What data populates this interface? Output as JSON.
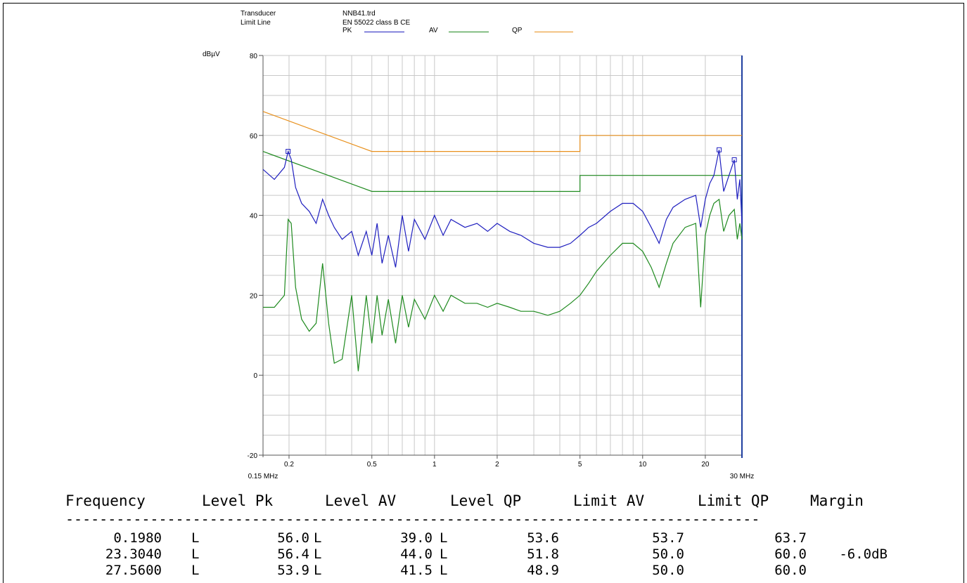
{
  "header": {
    "transducer_label": "Transducer",
    "transducer_value": "NNB41.trd",
    "limit_line_label": "Limit Line",
    "limit_line_value": "EN 55022 class B CE",
    "legend": [
      {
        "name": "PK",
        "color": "#1f1fbf"
      },
      {
        "name": "AV",
        "color": "#1f8a1f"
      },
      {
        "name": "QP",
        "color": "#e8901c"
      }
    ]
  },
  "chart_data": {
    "type": "line",
    "ylabel": "dBµV",
    "xscale": "log",
    "xlim": [
      0.15,
      30
    ],
    "ylim": [
      -20,
      80
    ],
    "y_ticks": [
      -20,
      0,
      20,
      40,
      60,
      80
    ],
    "x_ticks": [
      {
        "v": 0.2,
        "label": "0.2"
      },
      {
        "v": 0.5,
        "label": "0.5"
      },
      {
        "v": 1,
        "label": "1"
      },
      {
        "v": 2,
        "label": "2"
      },
      {
        "v": 5,
        "label": "5"
      },
      {
        "v": 10,
        "label": "10"
      },
      {
        "v": 20,
        "label": "20"
      }
    ],
    "x_min_label": "0.15 MHz",
    "x_max_label": "30 MHz",
    "grid": true,
    "series": [
      {
        "name": "QP",
        "color": "#e8901c",
        "x": [
          0.15,
          0.5,
          5,
          5,
          30
        ],
        "y": [
          66,
          56,
          56,
          60,
          60
        ]
      },
      {
        "name": "AV",
        "color": "#1f8a1f",
        "x": [
          0.15,
          0.5,
          5,
          5,
          30
        ],
        "y": [
          56,
          46,
          46,
          50,
          50
        ]
      },
      {
        "name": "PK",
        "color": "#1f1fbf",
        "x": [
          0.15,
          0.17,
          0.19,
          0.198,
          0.205,
          0.215,
          0.23,
          0.25,
          0.27,
          0.29,
          0.31,
          0.33,
          0.36,
          0.4,
          0.43,
          0.47,
          0.5,
          0.53,
          0.56,
          0.6,
          0.65,
          0.7,
          0.75,
          0.8,
          0.9,
          1.0,
          1.1,
          1.2,
          1.4,
          1.6,
          1.8,
          2.0,
          2.3,
          2.6,
          3.0,
          3.5,
          4.0,
          4.5,
          5.0,
          5.5,
          6.0,
          7.0,
          8.0,
          9.0,
          10.0,
          11.0,
          12.0,
          13.0,
          14.0,
          16.0,
          18.0,
          19.0,
          20.0,
          21.0,
          22.0,
          23.3,
          24.5,
          26.0,
          27.56,
          28.5,
          29.3,
          30.0
        ],
        "y": [
          51.5,
          49,
          52,
          56.0,
          54,
          47,
          43,
          41,
          38,
          44,
          40,
          37,
          34,
          36,
          30,
          36,
          30,
          38,
          28,
          35,
          27,
          40,
          31,
          39,
          34,
          40,
          35,
          39,
          37,
          38,
          36,
          38,
          36,
          35,
          33,
          32,
          32,
          33,
          35,
          37,
          38,
          41,
          43,
          43,
          41,
          37,
          33,
          39,
          42,
          44,
          45,
          37,
          44,
          48,
          50,
          56.4,
          46,
          50,
          53.9,
          44,
          49,
          38
        ]
      },
      {
        "name": "AV-measured",
        "color": "#1f8a1f",
        "x": [
          0.15,
          0.17,
          0.19,
          0.198,
          0.205,
          0.215,
          0.23,
          0.25,
          0.27,
          0.29,
          0.31,
          0.33,
          0.36,
          0.4,
          0.43,
          0.47,
          0.5,
          0.53,
          0.56,
          0.6,
          0.65,
          0.7,
          0.75,
          0.8,
          0.9,
          1.0,
          1.1,
          1.2,
          1.4,
          1.6,
          1.8,
          2.0,
          2.3,
          2.6,
          3.0,
          3.5,
          4.0,
          4.5,
          5.0,
          5.5,
          6.0,
          7.0,
          8.0,
          9.0,
          10.0,
          11.0,
          12.0,
          13.0,
          14.0,
          16.0,
          18.0,
          19.0,
          20.0,
          21.0,
          22.0,
          23.3,
          24.5,
          26.0,
          27.56,
          28.5,
          29.3,
          30.0
        ],
        "y": [
          17,
          17,
          20,
          39.0,
          38,
          22,
          14,
          11,
          13,
          28,
          13,
          3,
          4,
          20,
          1,
          20,
          8,
          20,
          10,
          19,
          8,
          20,
          12,
          19,
          14,
          20,
          16,
          20,
          18,
          18,
          17,
          18,
          17,
          16,
          16,
          15,
          16,
          18,
          20,
          23,
          26,
          30,
          33,
          33,
          31,
          27,
          22,
          28,
          33,
          37,
          38,
          17,
          35,
          40,
          43,
          44.0,
          36,
          40,
          41.5,
          34,
          38,
          34
        ]
      }
    ],
    "markers": [
      {
        "x": 0.198,
        "y": 56.0,
        "color": "#1f1fbf"
      },
      {
        "x": 23.304,
        "y": 56.4,
        "color": "#1f1fbf"
      },
      {
        "x": 27.56,
        "y": 53.9,
        "color": "#1f1fbf"
      }
    ]
  },
  "table": {
    "headers": [
      "Frequency",
      "Level Pk",
      "Level AV",
      "Level QP",
      "Limit AV",
      "Limit QP",
      "Margin"
    ],
    "rule": "----------------------------------------------------------------------------------",
    "rows": [
      {
        "freq": "0.1980",
        "pk_det": "L",
        "pk": "56.0",
        "av_det": "L",
        "av": "39.0",
        "qp_det": "L",
        "qp": "53.6",
        "lim_av": "53.7",
        "lim_qp": "63.7",
        "margin": ""
      },
      {
        "freq": "23.3040",
        "pk_det": "L",
        "pk": "56.4",
        "av_det": "L",
        "av": "44.0",
        "qp_det": "L",
        "qp": "51.8",
        "lim_av": "50.0",
        "lim_qp": "60.0",
        "margin": "-6.0dB"
      },
      {
        "freq": "27.5600",
        "pk_det": "L",
        "pk": "53.9",
        "av_det": "L",
        "av": "41.5",
        "qp_det": "L",
        "qp": "48.9",
        "lim_av": "50.0",
        "lim_qp": "60.0",
        "margin": ""
      }
    ]
  }
}
